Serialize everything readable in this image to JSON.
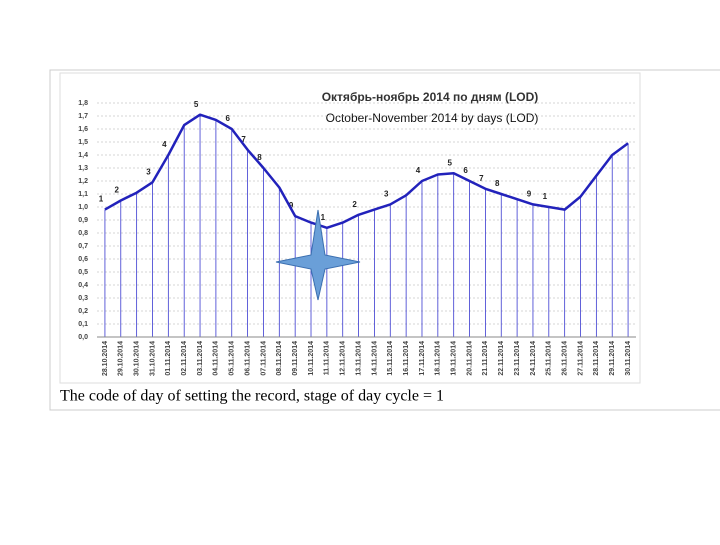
{
  "chart_data": {
    "type": "line",
    "title": "Октябрь-ноябрь 2014      по дням (LOD)",
    "subtitle": "October-November 2014 by days (LOD)",
    "caption": "The code of day of setting the record, stage of day cycle = 1",
    "categories": [
      "28.10.2014",
      "29.10.2014",
      "30.10.2014",
      "31.10.2014",
      "01.11.2014",
      "02.11.2014",
      "03.11.2014",
      "04.11.2014",
      "05.11.2014",
      "06.11.2014",
      "07.11.2014",
      "08.11.2014",
      "09.11.2014",
      "10.11.2014",
      "11.11.2014",
      "12.11.2014",
      "13.11.2014",
      "14.11.2014",
      "15.11.2014",
      "16.11.2014",
      "17.11.2014",
      "18.11.2014",
      "19.11.2014",
      "20.11.2014",
      "21.11.2014",
      "22.11.2014",
      "23.11.2014",
      "24.11.2014",
      "25.11.2014",
      "26.11.2014",
      "27.11.2014",
      "28.11.2014",
      "29.11.2014",
      "30.11.2014"
    ],
    "values": [
      0.98,
      1.05,
      1.11,
      1.19,
      1.4,
      1.63,
      1.71,
      1.67,
      1.6,
      1.44,
      1.3,
      1.15,
      0.93,
      0.88,
      0.84,
      0.88,
      0.94,
      0.98,
      1.02,
      1.09,
      1.2,
      1.25,
      1.26,
      1.2,
      1.14,
      1.1,
      1.06,
      1.02,
      1.0,
      0.98,
      1.08,
      1.24,
      1.4,
      1.49
    ],
    "point_labels": [
      "1",
      "2",
      null,
      "3",
      "4",
      null,
      "5",
      null,
      "6",
      "7",
      "8",
      null,
      "9",
      null,
      "1",
      null,
      "2",
      null,
      "3",
      null,
      "4",
      null,
      "5",
      "6",
      "7",
      "8",
      null,
      "9",
      "1",
      null,
      null,
      null,
      null,
      null
    ],
    "color": "#2222bb",
    "ylim": [
      0,
      1.8
    ],
    "yticks": [
      {
        "value": 0,
        "label": "0,0"
      },
      {
        "value": 0.1,
        "label": "0,1"
      },
      {
        "value": 0.2,
        "label": "0,2"
      },
      {
        "value": 0.3,
        "label": "0,3"
      },
      {
        "value": 0.4,
        "label": "0,4"
      },
      {
        "value": 0.5,
        "label": "0,5"
      },
      {
        "value": 0.6,
        "label": "0,6"
      },
      {
        "value": 0.7,
        "label": "0,7"
      },
      {
        "value": 0.8,
        "label": "0,8"
      },
      {
        "value": 0.9,
        "label": "0,9"
      },
      {
        "value": 1,
        "label": "1,0"
      },
      {
        "value": 1.1,
        "label": "1,1"
      },
      {
        "value": 1.2,
        "label": "1,2"
      },
      {
        "value": 1.3,
        "label": "1,3"
      },
      {
        "value": 1.4,
        "label": "1,4"
      },
      {
        "value": 1.5,
        "label": "1,5"
      },
      {
        "value": 1.6,
        "label": "1,6"
      },
      {
        "value": 1.7,
        "label": "1,7"
      },
      {
        "value": 1.8,
        "label": "1,8"
      }
    ],
    "grid": true
  }
}
